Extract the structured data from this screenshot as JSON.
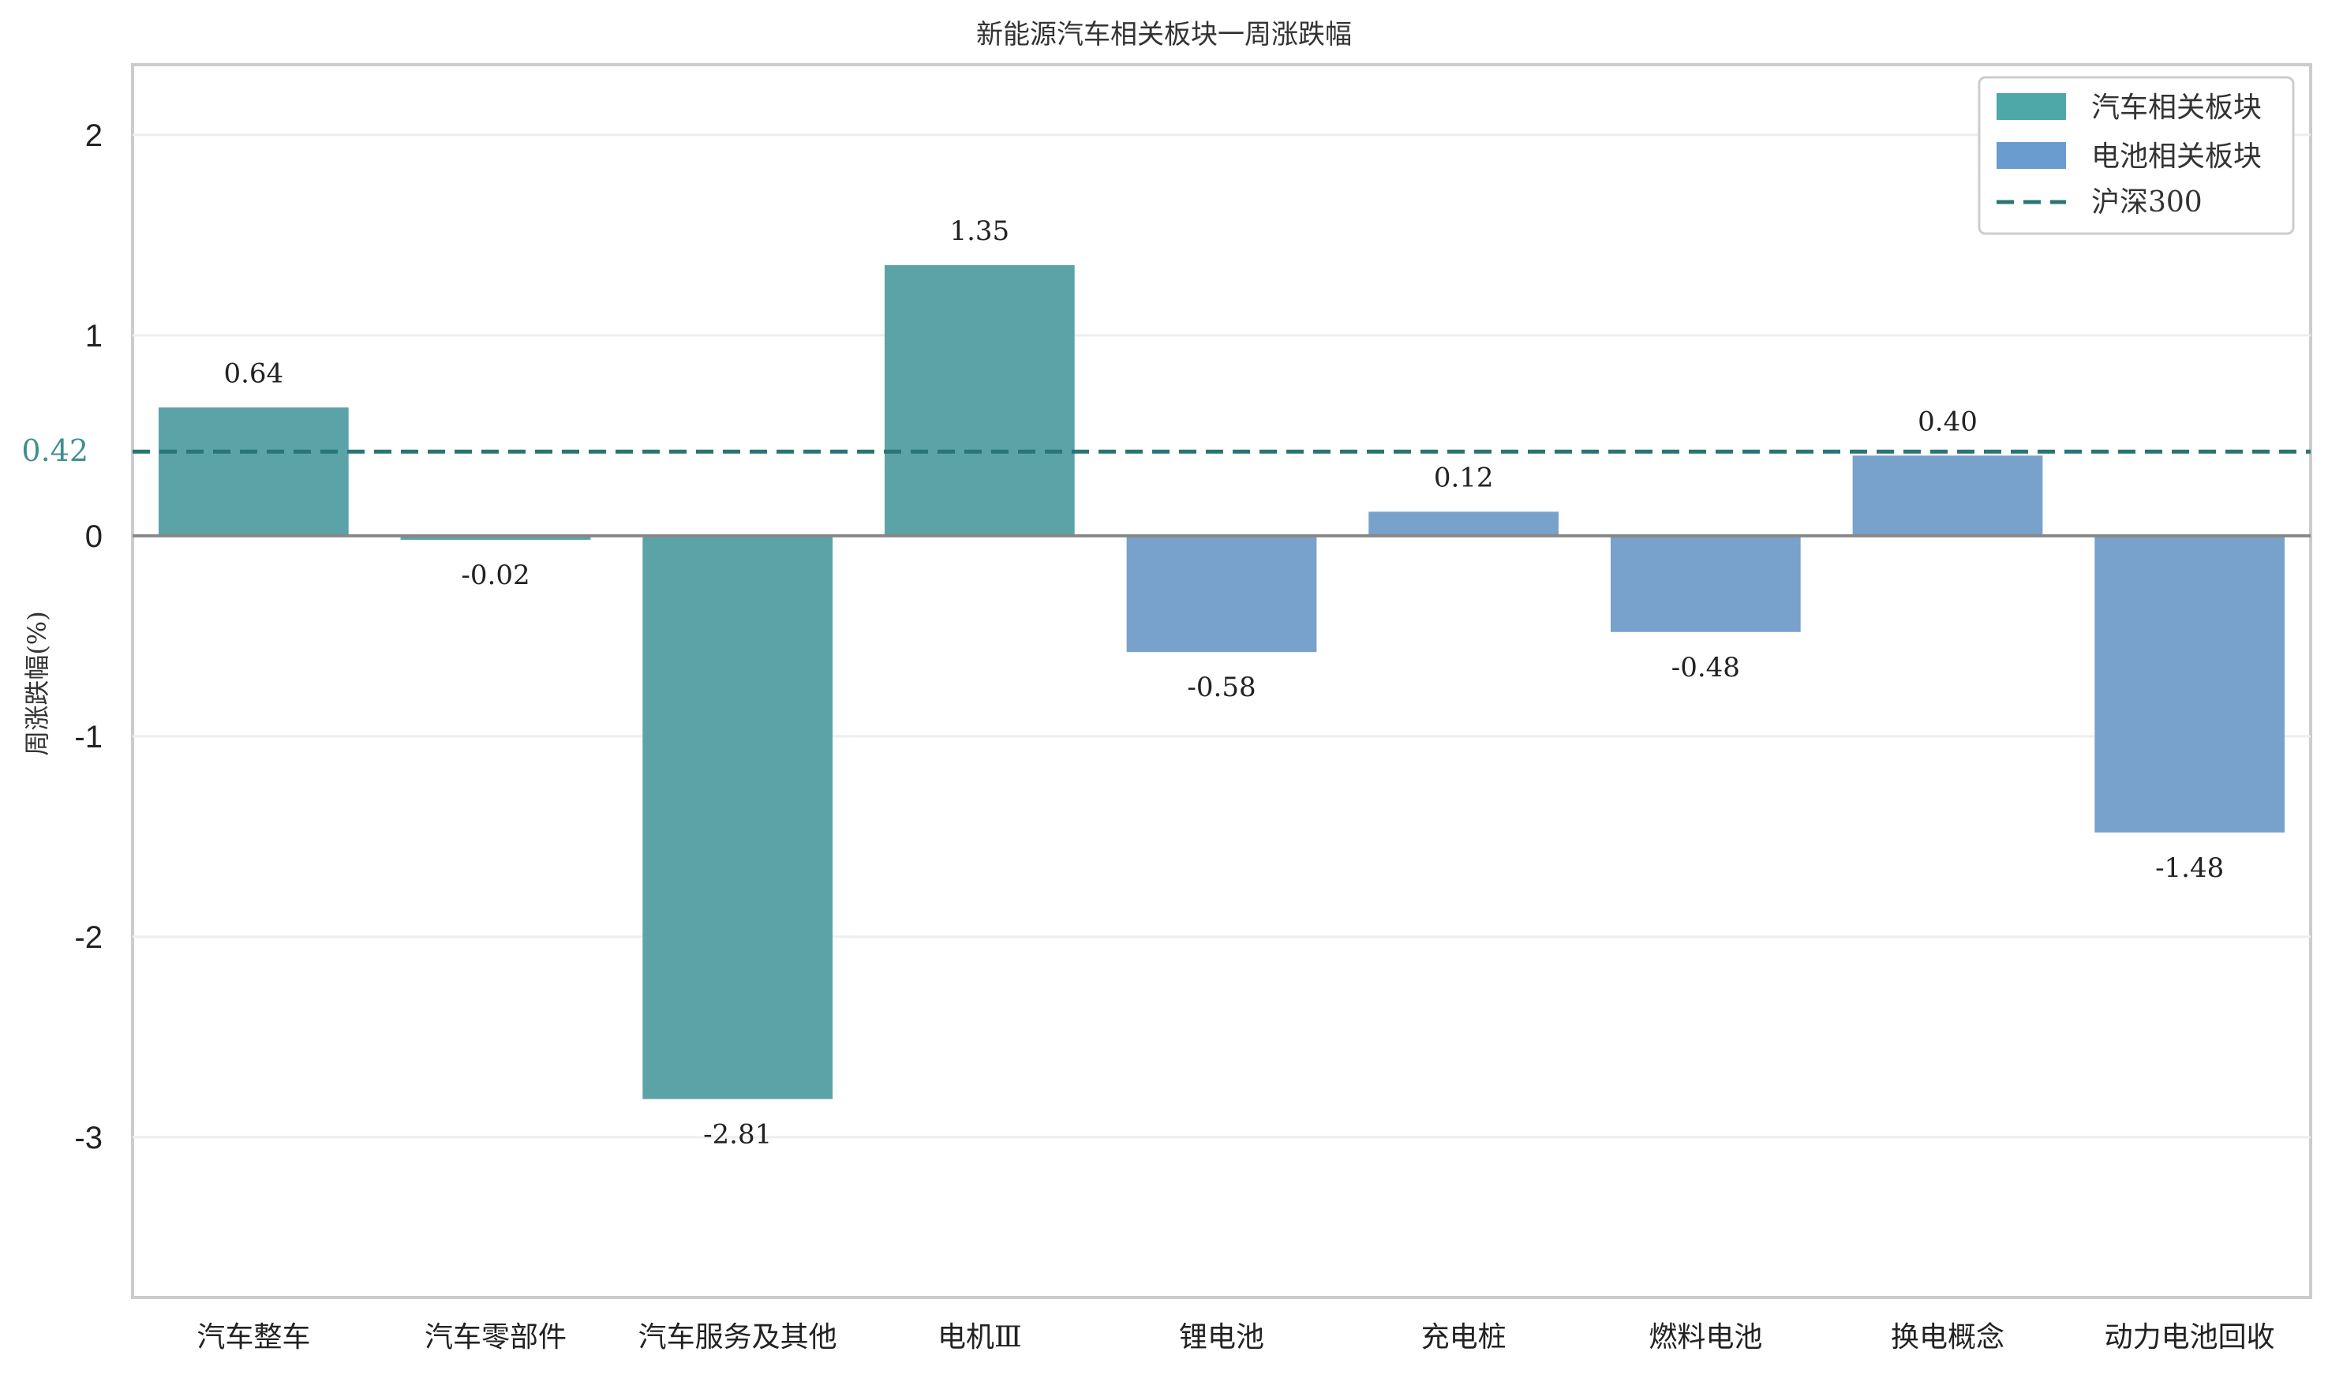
{
  "chart_data": {
    "type": "bar",
    "title": "新能源汽车相关板块一周涨跌幅",
    "ylabel": "周涨跌幅(%)",
    "xlabel": "",
    "ylim": [
      -3.8,
      2.35
    ],
    "yticks": [
      2,
      1,
      0,
      -1,
      -2,
      -3
    ],
    "grid": true,
    "legend_position": "top-right",
    "categories": [
      "汽车整车",
      "汽车零部件",
      "汽车服务及其他",
      "电机Ⅲ",
      "锂电池",
      "充电桩",
      "燃料电池",
      "换电概念",
      "动力电池回收"
    ],
    "values": [
      0.64,
      -0.02,
      -2.81,
      1.35,
      -0.58,
      0.12,
      -0.48,
      0.4,
      -1.48
    ],
    "value_labels": [
      "0.64",
      "-0.02",
      "-2.81",
      "1.35",
      "-0.58",
      "0.12",
      "-0.48",
      "0.40",
      "-1.48"
    ],
    "groups": [
      "auto",
      "auto",
      "auto",
      "auto",
      "battery",
      "battery",
      "battery",
      "battery",
      "battery"
    ],
    "legend": [
      {
        "key": "auto",
        "name": "汽车相关板块",
        "color": "#4ea8a8"
      },
      {
        "key": "battery",
        "name": "电池相关板块",
        "color": "#6a9ccf"
      },
      {
        "key": "ref",
        "name": "沪深300",
        "color": "#2a7575"
      }
    ],
    "bar_colors": {
      "auto": "#5ba3a6",
      "battery": "#78a2cb"
    },
    "reference_line": {
      "name": "沪深300",
      "value": 0.42,
      "label": "0.42",
      "color": "#2a7575"
    }
  }
}
